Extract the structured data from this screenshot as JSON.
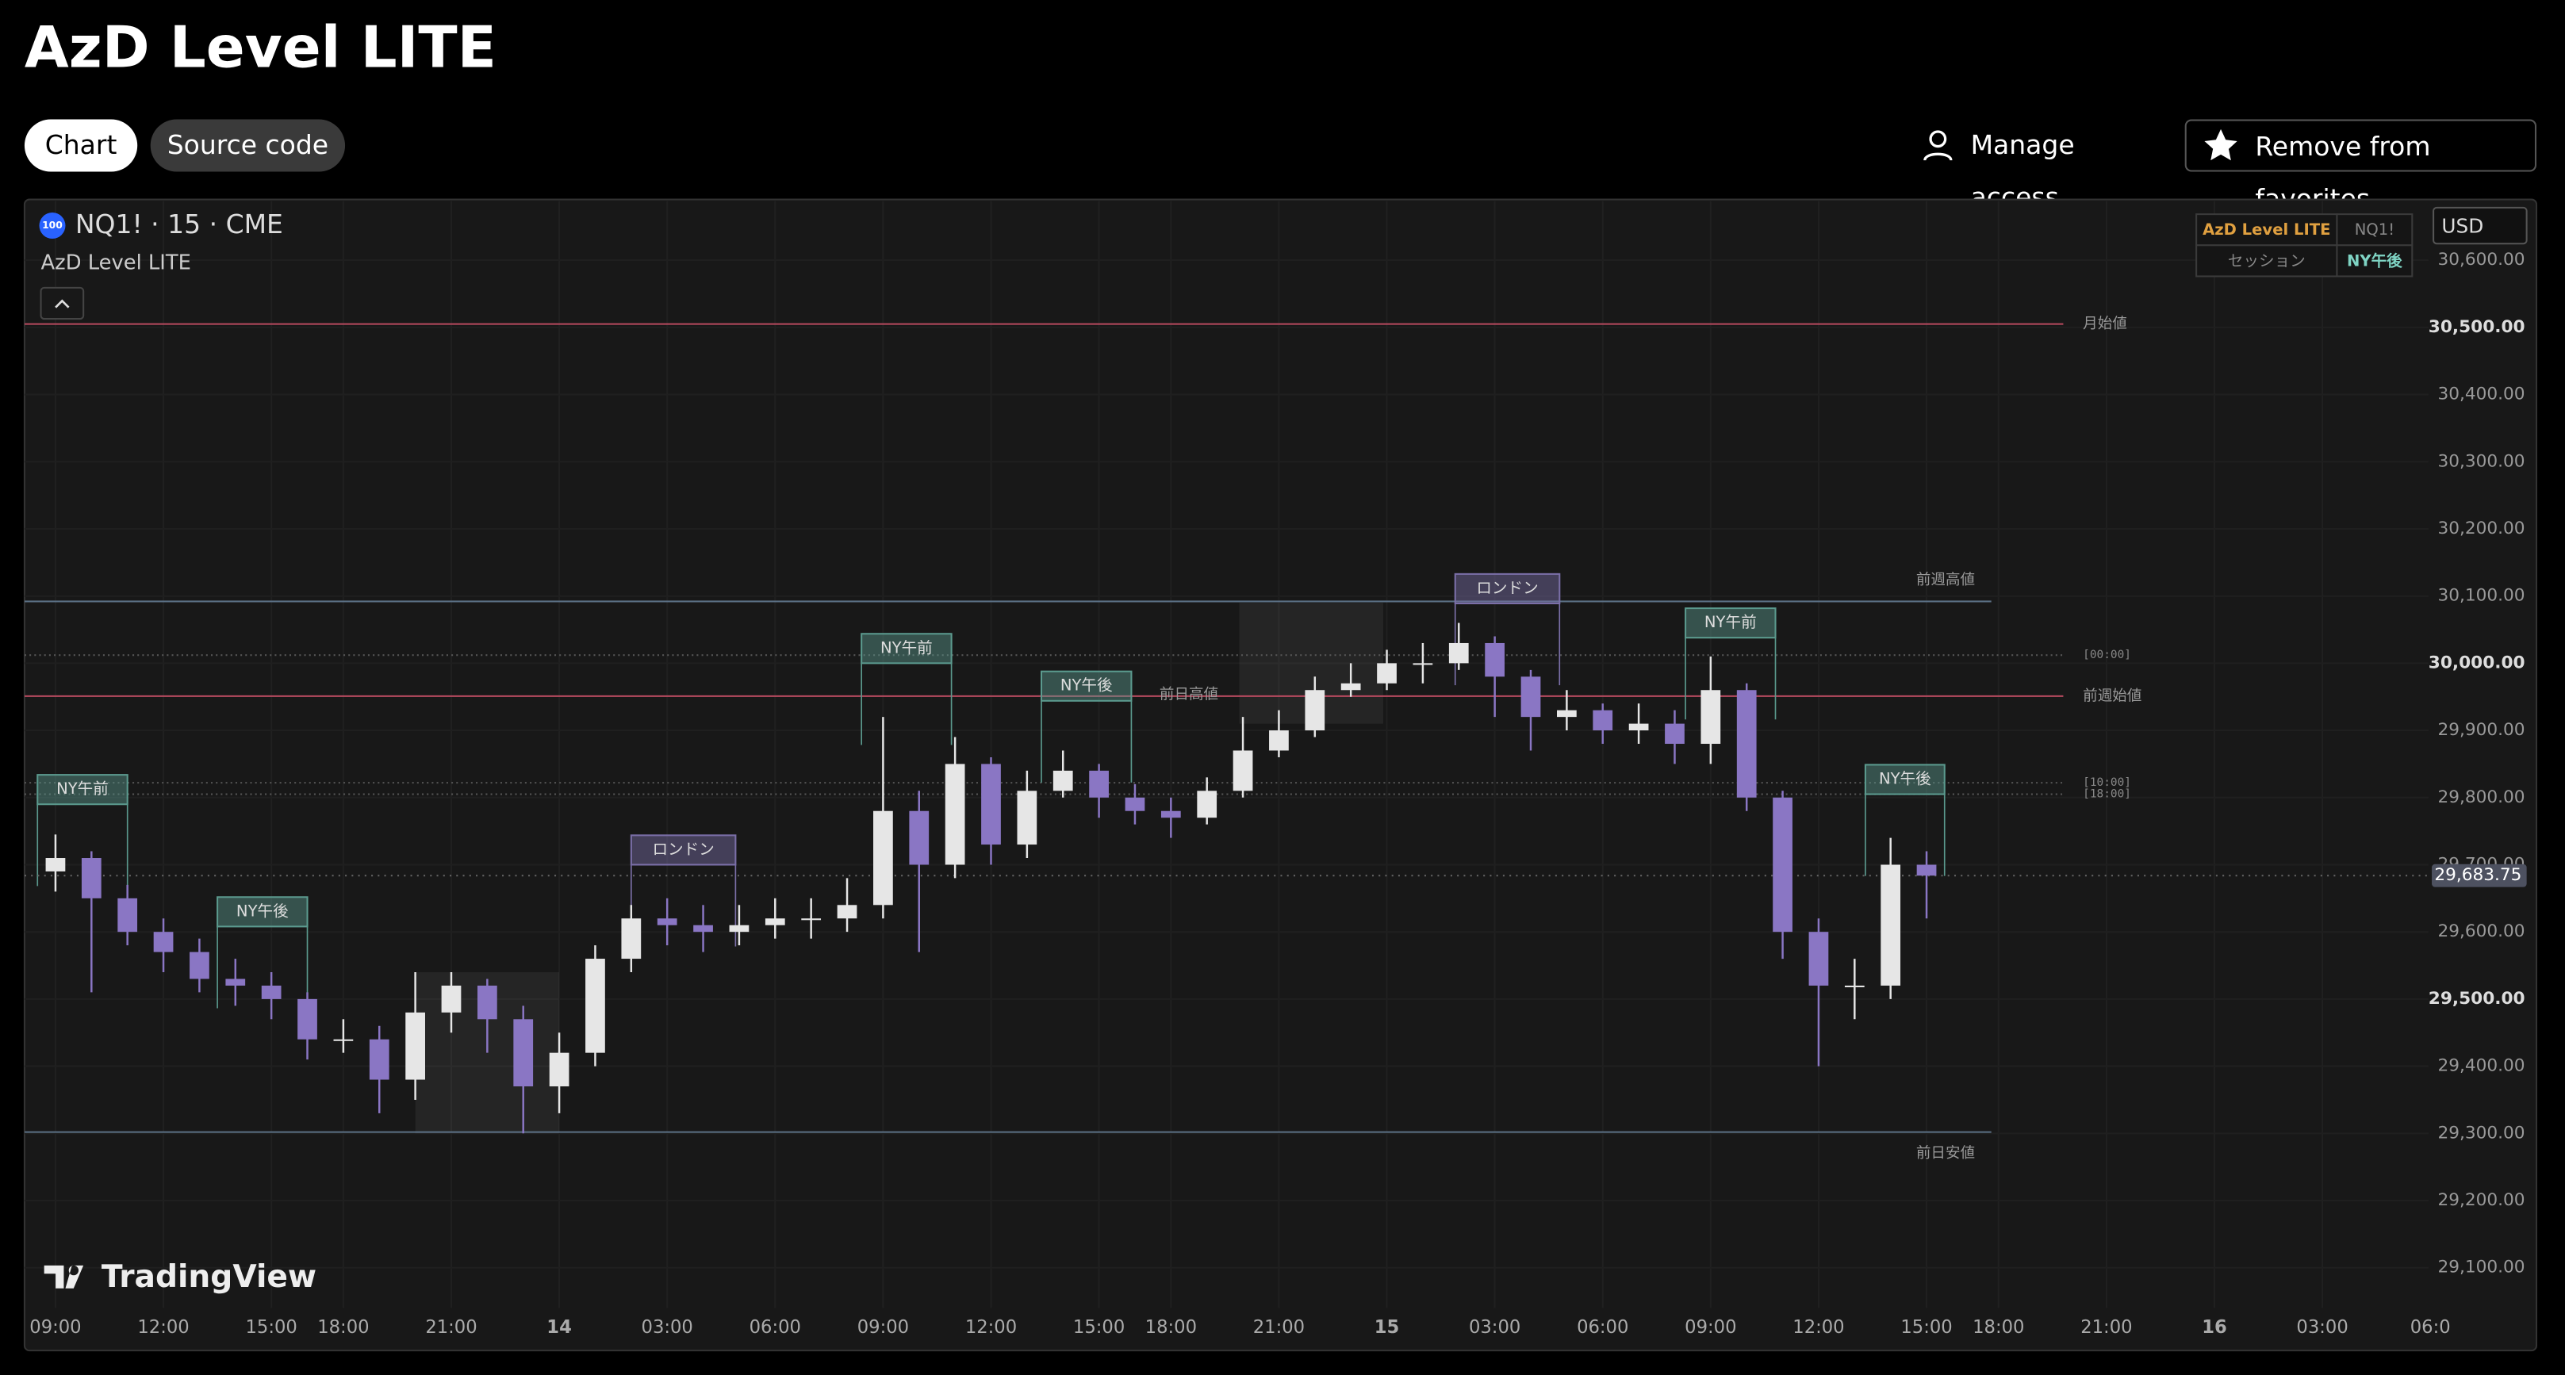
{
  "header": {
    "title": "AzD Level LITE",
    "tabs": [
      "Chart",
      "Source code"
    ],
    "actions": [
      "Manage access",
      "Remove from favorites"
    ]
  },
  "chart_data": {
    "type": "candlestick",
    "symbol": "NQ1! · 15 · CME",
    "badge": "100",
    "indicator": "AzD Level LITE",
    "currency": "USD",
    "info_table": [
      [
        "AzD Level LITE",
        "NQ1!"
      ],
      [
        "セッション",
        "NY午後"
      ]
    ],
    "watermark": "TradingView",
    "up_color": "#e6e6e6",
    "down_color": "#8a76c4",
    "grid": true,
    "x": [
      0,
      1,
      2,
      3,
      4,
      5,
      6,
      7,
      8,
      9,
      10,
      11,
      12,
      13,
      14,
      15,
      16,
      17,
      18,
      19,
      20,
      21,
      22,
      23,
      24,
      25,
      26,
      27,
      28,
      29,
      30,
      31,
      32,
      33,
      34,
      35,
      36,
      37,
      38,
      39,
      40,
      41,
      42,
      43,
      44,
      45,
      46,
      47,
      48,
      49,
      50,
      51,
      52
    ],
    "open": [
      29690,
      29710,
      29650,
      29600,
      29570,
      29530,
      29520,
      29500,
      29440,
      29440,
      29380,
      29480,
      29520,
      29470,
      29370,
      29420,
      29560,
      29620,
      29610,
      29600,
      29610,
      29620,
      29620,
      29640,
      29780,
      29700,
      29850,
      29730,
      29810,
      29840,
      29800,
      29780,
      29770,
      29810,
      29870,
      29900,
      29960,
      29970,
      30000,
      30000,
      30030,
      29980,
      29920,
      29930,
      29900,
      29910,
      29880,
      29960,
      29800,
      29600,
      29520,
      29520,
      29700
    ],
    "high": [
      29745,
      29720,
      29670,
      29620,
      29590,
      29560,
      29540,
      29510,
      29470,
      29460,
      29540,
      29540,
      29530,
      29490,
      29450,
      29580,
      29640,
      29650,
      29640,
      29640,
      29650,
      29650,
      29680,
      29920,
      29810,
      29890,
      29860,
      29840,
      29870,
      29850,
      29820,
      29800,
      29830,
      29920,
      29930,
      29980,
      30000,
      30020,
      30030,
      30060,
      30040,
      29990,
      29960,
      29940,
      29940,
      29930,
      30010,
      29970,
      29810,
      29620,
      29560,
      29740,
      29720
    ],
    "low": [
      29660,
      29510,
      29580,
      29540,
      29510,
      29490,
      29470,
      29410,
      29420,
      29330,
      29350,
      29450,
      29420,
      29300,
      29330,
      29400,
      29540,
      29580,
      29570,
      29580,
      29590,
      29590,
      29600,
      29620,
      29570,
      29680,
      29700,
      29710,
      29800,
      29770,
      29760,
      29740,
      29760,
      29800,
      29860,
      29890,
      29950,
      29960,
      29970,
      29990,
      29920,
      29870,
      29900,
      29880,
      29880,
      29850,
      29850,
      29780,
      29560,
      29400,
      29470,
      29500,
      29620
    ],
    "close": [
      29710,
      29650,
      29600,
      29570,
      29530,
      29520,
      29500,
      29440,
      29440,
      29380,
      29480,
      29520,
      29470,
      29370,
      29420,
      29560,
      29620,
      29610,
      29600,
      29610,
      29620,
      29620,
      29640,
      29780,
      29700,
      29850,
      29730,
      29810,
      29840,
      29800,
      29780,
      29770,
      29810,
      29870,
      29900,
      29960,
      29970,
      30000,
      30000,
      30030,
      29980,
      29920,
      29930,
      29900,
      29910,
      29880,
      29960,
      29800,
      29600,
      29520,
      29520,
      29700,
      29683.75
    ],
    "xlim": [
      -0.86,
      65.95
    ],
    "xticks": [
      {
        "value": 0,
        "label": "09:00"
      },
      {
        "value": 3,
        "label": "12:00"
      },
      {
        "value": 6,
        "label": "15:00"
      },
      {
        "value": 8,
        "label": "18:00"
      },
      {
        "value": 11,
        "label": "21:00"
      },
      {
        "value": 14,
        "label": "14"
      },
      {
        "value": 17,
        "label": "03:00"
      },
      {
        "value": 20,
        "label": "06:00"
      },
      {
        "value": 23,
        "label": "09:00"
      },
      {
        "value": 26,
        "label": "12:00"
      },
      {
        "value": 29,
        "label": "15:00"
      },
      {
        "value": 31,
        "label": "18:00"
      },
      {
        "value": 34,
        "label": "21:00"
      },
      {
        "value": 37,
        "label": "15"
      },
      {
        "value": 40,
        "label": "03:00"
      },
      {
        "value": 43,
        "label": "06:00"
      },
      {
        "value": 46,
        "label": "09:00"
      },
      {
        "value": 49,
        "label": "12:00"
      },
      {
        "value": 52,
        "label": "15:00"
      },
      {
        "value": 54,
        "label": "18:00"
      },
      {
        "value": 57,
        "label": "21:00"
      },
      {
        "value": 60,
        "label": "16"
      },
      {
        "value": 63,
        "label": "03:00"
      },
      {
        "value": 66,
        "label": "06:0"
      }
    ],
    "ylim": [
      29040,
      30688
    ],
    "yticks": [
      {
        "value": 29100,
        "label": "29,100.00"
      },
      {
        "value": 29200,
        "label": "29,200.00"
      },
      {
        "value": 29300,
        "label": "29,300.00"
      },
      {
        "value": 29400,
        "label": "29,400.00"
      },
      {
        "value": 29500,
        "label": "29,500.00"
      },
      {
        "value": 29600,
        "label": "29,600.00"
      },
      {
        "value": 29700,
        "label": "29,700.00"
      },
      {
        "value": 29800,
        "label": "29,800.00"
      },
      {
        "value": 29900,
        "label": "29,900.00"
      },
      {
        "value": 30000,
        "label": "30,000.00"
      },
      {
        "value": 30100,
        "label": "30,100.00"
      },
      {
        "value": 30200,
        "label": "30,200.00"
      },
      {
        "value": 30300,
        "label": "30,300.00"
      },
      {
        "value": 30400,
        "label": "30,400.00"
      },
      {
        "value": 30500,
        "label": "30,500.00"
      },
      {
        "value": 30600,
        "label": "30,600.00"
      }
    ],
    "last_price": {
      "value": 29683.75,
      "label": "29,683.75"
    },
    "levels": [
      {
        "name": "月始値",
        "value": 30505,
        "color": "#b84a5f",
        "end": 55.8,
        "label_pos": "right"
      },
      {
        "name": "前週高値",
        "value": 30092,
        "color": "#5b7085",
        "end": 53.8,
        "label_pos": "above"
      },
      {
        "name": "前週始値",
        "value": 29951,
        "color": "#b84a5f",
        "end": 55.8,
        "label_pos": "right"
      },
      {
        "name": "前日安値",
        "value": 29302,
        "color": "#5b7085",
        "end": 53.8,
        "label_pos": "below"
      },
      {
        "name": "[00:00]",
        "value": 30012,
        "color": "#555555",
        "end": 55.8,
        "label_pos": "right",
        "style": "dotted"
      },
      {
        "name": "[10:00]",
        "value": 29822,
        "color": "#555555",
        "end": 55.8,
        "label_pos": "right",
        "style": "dotted"
      },
      {
        "name": "[18:00]",
        "value": 29805,
        "color": "#555555",
        "end": 55.8,
        "label_pos": "right",
        "style": "dotted"
      }
    ],
    "annotations": [
      {
        "text": "前日高値",
        "x": 31.5,
        "y": 29951
      }
    ],
    "sessions": [
      {
        "label": "NY午前",
        "start": -0.5,
        "end": 2,
        "high": 29790,
        "color": "#5b9a8e"
      },
      {
        "label": "NY午後",
        "start": 4.5,
        "end": 7,
        "high": 29608,
        "color": "#5b9a8e"
      },
      {
        "label": "ロンドン",
        "start": 16,
        "end": 18.9,
        "high": 29700,
        "color": "#7b6fa8"
      },
      {
        "label": "NY午前",
        "start": 22.4,
        "end": 24.9,
        "high": 30000,
        "color": "#5b9a8e"
      },
      {
        "label": "NY午後",
        "start": 27.4,
        "end": 29.9,
        "high": 29944,
        "color": "#5b9a8e"
      },
      {
        "label": "ロンドン",
        "start": 38.9,
        "end": 41.8,
        "high": 30089,
        "color": "#7b6fa8"
      },
      {
        "label": "NY午前",
        "start": 45.3,
        "end": 47.8,
        "high": 30038,
        "color": "#5b9a8e"
      },
      {
        "label": "NY午後",
        "start": 50.3,
        "end": 52.5,
        "high": 29805,
        "color": "#5b9a8e"
      }
    ],
    "zones": [
      {
        "x": [
          10,
          14
        ],
        "y": [
          29300,
          29540
        ]
      },
      {
        "x": [
          32.9,
          36.9
        ],
        "y": [
          29910,
          30090
        ]
      }
    ]
  }
}
